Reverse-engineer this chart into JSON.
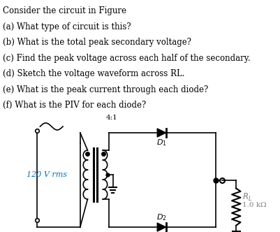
{
  "text_lines": [
    "Consider the circuit in Figure",
    "(a) What type of circuit is this?",
    "(b) What is the total peak secondary voltage?",
    "(c) Find the peak voltage across each half of the secondary.",
    "(d) Sketch the voltage waveform across RL.",
    "(e) What is the peak current through each diode?",
    "(f) What is the PIV for each diode?"
  ],
  "text_fontsize": 8.5,
  "text_color": "#000000",
  "label_120v_color": "#0070c0",
  "label_120v_text": "120 V rms",
  "ratio_label": "4:1",
  "d1_label": "D",
  "d1_sub": "1",
  "d2_label": "D",
  "d2_sub": "2",
  "rl_label": "R",
  "rl_sub": "L",
  "rl_value": "1.0 kΩ",
  "background_color": "#ffffff"
}
